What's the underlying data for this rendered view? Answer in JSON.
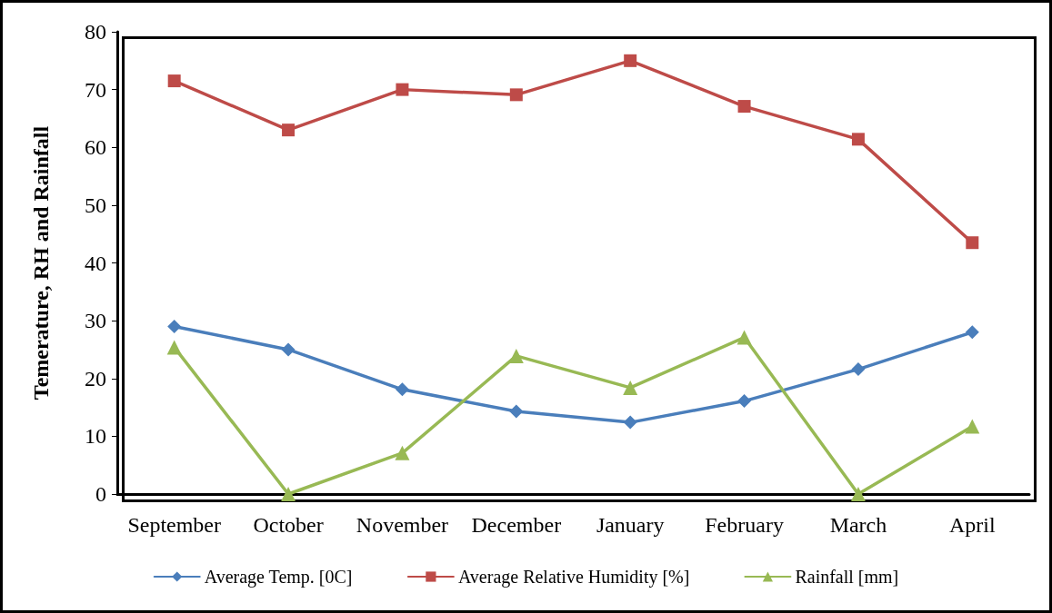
{
  "chart_data": {
    "type": "line",
    "ylabel": "Temerature, RH and Rainfall",
    "categories": [
      "September",
      "October",
      "November",
      "December",
      "January",
      "February",
      "March",
      "April"
    ],
    "series": [
      {
        "name": "Average Temp. [0C]",
        "color": "#4a7ebb",
        "marker": "diamond",
        "values": [
          29.0,
          25.0,
          18.1,
          14.3,
          12.4,
          16.1,
          21.6,
          28.0
        ]
      },
      {
        "name": "Average Relative Humidity [%]",
        "color": "#be4b48",
        "marker": "square",
        "values": [
          71.5,
          63.0,
          70.0,
          69.1,
          75.0,
          67.1,
          61.4,
          43.5
        ]
      },
      {
        "name": "Rainfall [mm]",
        "color": "#98b954",
        "marker": "triangle",
        "values": [
          25.4,
          0,
          7.1,
          23.9,
          18.4,
          27.1,
          0,
          11.7
        ]
      }
    ],
    "ylim": [
      0,
      80
    ],
    "yticks": [
      0,
      10,
      20,
      30,
      40,
      50,
      60,
      70,
      80
    ],
    "grid": false,
    "legend": "bottom",
    "line_style": "solid"
  }
}
